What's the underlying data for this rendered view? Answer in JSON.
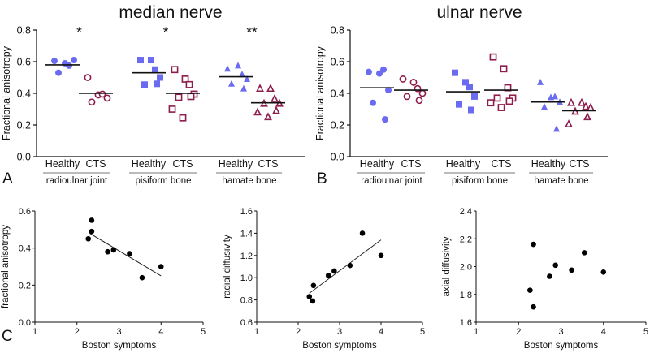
{
  "colors": {
    "healthy": "#6b6bf2",
    "cts": "#8c1d4c",
    "axis": "#111111",
    "mean": "#111111"
  },
  "chart_data": [
    {
      "type": "scatter",
      "panel_label": "A",
      "title": "median nerve",
      "ylabel": "Fractional anisotropy",
      "ylim": [
        0,
        0.8
      ],
      "yticks": [
        "0.0",
        "0.2",
        "0.4",
        "0.6",
        "0.8"
      ],
      "groups": [
        {
          "label": "radioulnar joint",
          "marker": "circle",
          "significance": "*",
          "series": [
            {
              "name": "Healthy",
              "values": [
                0.605,
                0.59,
                0.575,
                0.61,
                0.53
              ],
              "mean": 0.58
            },
            {
              "name": "CTS",
              "values": [
                0.5,
                0.39,
                0.395,
                0.37,
                0.345
              ],
              "mean": 0.4
            }
          ]
        },
        {
          "label": "pisiform bone",
          "marker": "square",
          "significance": "*",
          "series": [
            {
              "name": "Healthy",
              "values": [
                0.61,
                0.61,
                0.55,
                0.5,
                0.455,
                0.46
              ],
              "mean": 0.53
            },
            {
              "name": "CTS",
              "values": [
                0.55,
                0.49,
                0.455,
                0.395,
                0.375,
                0.38,
                0.3,
                0.245
              ],
              "mean": 0.4
            }
          ]
        },
        {
          "label": "hamate bone",
          "marker": "triangle",
          "significance": "**",
          "series": [
            {
              "name": "Healthy",
              "values": [
                0.555,
                0.575,
                0.52,
                0.49,
                0.46,
                0.43
              ],
              "mean": 0.505
            },
            {
              "name": "CTS",
              "values": [
                0.43,
                0.43,
                0.365,
                0.335,
                0.335,
                0.29,
                0.28,
                0.25
              ],
              "mean": 0.34
            }
          ]
        }
      ]
    },
    {
      "type": "scatter",
      "panel_label": "B",
      "title": "ulnar nerve",
      "ylabel": "Fractional anisotropy",
      "ylim": [
        0,
        0.8
      ],
      "yticks": [
        "0.0",
        "0.2",
        "0.4",
        "0.6",
        "0.8"
      ],
      "groups": [
        {
          "label": "radioulnar joint",
          "marker": "circle",
          "significance": "",
          "series": [
            {
              "name": "Healthy",
              "values": [
                0.535,
                0.525,
                0.55,
                0.42,
                0.34,
                0.235
              ],
              "mean": 0.435
            },
            {
              "name": "CTS",
              "values": [
                0.49,
                0.47,
                0.43,
                0.4,
                0.38,
                0.355
              ],
              "mean": 0.42
            }
          ]
        },
        {
          "label": "pisiform bone",
          "marker": "square",
          "significance": "",
          "series": [
            {
              "name": "Healthy",
              "values": [
                0.53,
                0.47,
                0.44,
                0.38,
                0.33,
                0.295
              ],
              "mean": 0.41
            },
            {
              "name": "CTS",
              "values": [
                0.63,
                0.555,
                0.435,
                0.37,
                0.37,
                0.35,
                0.34,
                0.31
              ],
              "mean": 0.42
            }
          ]
        },
        {
          "label": "hamate bone",
          "marker": "triangle",
          "significance": "",
          "series": [
            {
              "name": "Healthy",
              "values": [
                0.47,
                0.375,
                0.38,
                0.345,
                0.315,
                0.175
              ],
              "mean": 0.345
            },
            {
              "name": "CTS",
              "values": [
                0.34,
                0.34,
                0.315,
                0.31,
                0.285,
                0.25,
                0.205
              ],
              "mean": 0.29
            }
          ]
        }
      ]
    },
    {
      "type": "scatter",
      "panel_label": "C",
      "xlabel": "Boston symptoms",
      "ylabel": "fractional anisotropy",
      "xlim": [
        1,
        5
      ],
      "ylim": [
        0,
        0.6
      ],
      "xticks": [
        "1",
        "2",
        "3",
        "4",
        "5"
      ],
      "yticks": [
        "0.0",
        "0.2",
        "0.4",
        "0.6"
      ],
      "x": [
        2.27,
        2.35,
        2.35,
        2.73,
        2.87,
        3.25,
        3.55,
        4.0
      ],
      "y": [
        0.45,
        0.55,
        0.49,
        0.38,
        0.39,
        0.37,
        0.24,
        0.3
      ],
      "fit": [
        [
          2.3,
          0.48
        ],
        [
          4.0,
          0.25
        ]
      ]
    },
    {
      "type": "scatter",
      "xlabel": "Boston symptoms",
      "ylabel": "radial diffusivity",
      "xlim": [
        1,
        5
      ],
      "ylim": [
        0.6,
        1.6
      ],
      "xticks": [
        "1",
        "2",
        "3",
        "4",
        "5"
      ],
      "yticks": [
        "0.6",
        "0.8",
        "1.0",
        "1.2",
        "1.4",
        "1.6"
      ],
      "x": [
        2.27,
        2.35,
        2.37,
        2.73,
        2.87,
        3.25,
        3.55,
        4.0
      ],
      "y": [
        0.83,
        0.79,
        0.93,
        1.02,
        1.06,
        1.11,
        1.4,
        1.2
      ],
      "fit": [
        [
          2.27,
          0.86
        ],
        [
          4.0,
          1.34
        ]
      ]
    },
    {
      "type": "scatter",
      "xlabel": "Boston symptoms",
      "ylabel": "axial diffusivity",
      "xlim": [
        1,
        5
      ],
      "ylim": [
        1.6,
        2.4
      ],
      "xticks": [
        "1",
        "2",
        "3",
        "4",
        "5"
      ],
      "yticks": [
        "1.6",
        "1.8",
        "2.0",
        "2.2",
        "2.4"
      ],
      "x": [
        2.27,
        2.35,
        2.35,
        2.73,
        2.87,
        3.25,
        3.55,
        4.0
      ],
      "y": [
        1.83,
        1.71,
        2.16,
        1.93,
        2.01,
        1.975,
        2.1,
        1.96
      ]
    }
  ]
}
